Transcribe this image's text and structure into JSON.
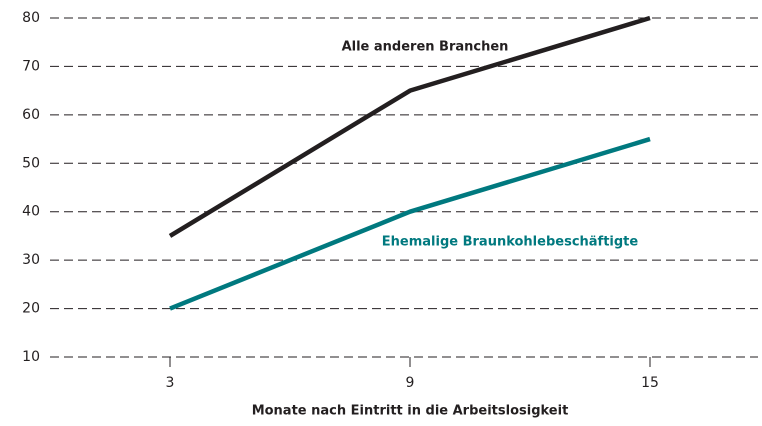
{
  "chart_data": {
    "type": "line",
    "x_label": "Monate nach Eintritt in die Arbeitslosigkeit",
    "categories": [
      "3",
      "9",
      "15"
    ],
    "series": [
      {
        "name": "Alle anderen Branchen",
        "color": "#231f20",
        "values": [
          35,
          65,
          80
        ]
      },
      {
        "name": "Ehemalige Braunkohlebeschäftigte",
        "color": "#00797f",
        "values": [
          20,
          40,
          55
        ]
      }
    ],
    "ylim": [
      10,
      80
    ],
    "yticks": [
      10,
      20,
      30,
      40,
      50,
      60,
      70,
      80
    ],
    "grid": true
  }
}
